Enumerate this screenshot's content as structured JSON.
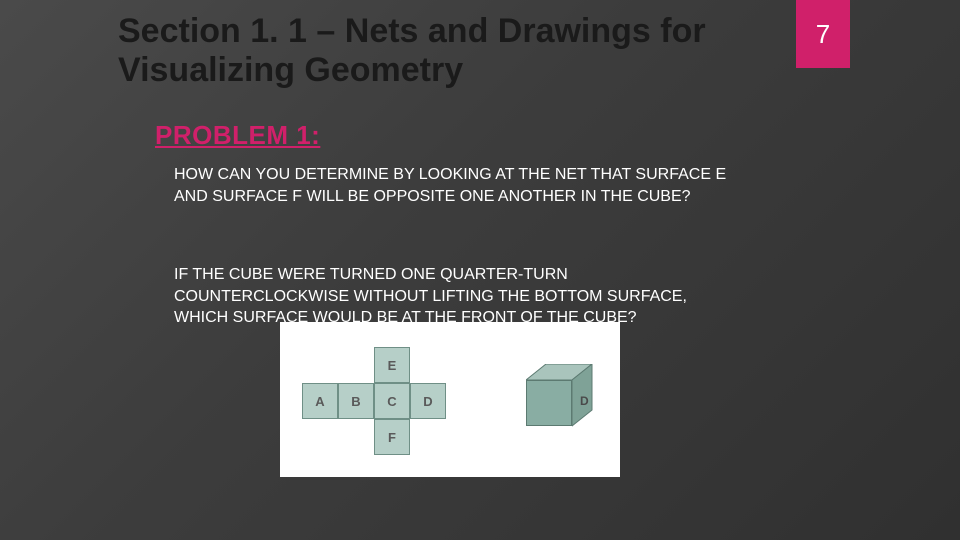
{
  "page": {
    "title": "Section 1. 1 – Nets and Drawings for Visualizing Geometry",
    "number": "7",
    "accent_color": "#d0206a",
    "title_color": "#1a1a1a",
    "body_text_color": "#ffffff",
    "title_fontsize": 34,
    "body_fontsize": 16
  },
  "problem": {
    "label": "PROBLEM 1:",
    "q1": "HOW CAN YOU DETERMINE BY LOOKING AT THE NET THAT SURFACE E AND SURFACE F WILL BE OPPOSITE ONE ANOTHER IN THE CUBE?",
    "q2": "IF THE CUBE WERE TURNED ONE QUARTER-TURN COUNTERCLOCKWISE WITHOUT LIFTING THE BOTTOM SURFACE, WHICH SURFACE WOULD BE AT THE FRONT OF THE CUBE?"
  },
  "figure": {
    "background_color": "#ffffff",
    "net": {
      "square_size": 36,
      "fill_color": "#b6cfc8",
      "border_color": "#6f8f86",
      "label_color": "#5a5a5a",
      "faces": [
        {
          "label": "A",
          "col": 0,
          "row": 1
        },
        {
          "label": "B",
          "col": 1,
          "row": 1
        },
        {
          "label": "C",
          "col": 2,
          "row": 1
        },
        {
          "label": "D",
          "col": 3,
          "row": 1
        },
        {
          "label": "E",
          "col": 2,
          "row": 0
        },
        {
          "label": "F",
          "col": 2,
          "row": 2
        }
      ]
    },
    "cube": {
      "front_color": "#89ada3",
      "top_color": "#a9c4bc",
      "side_color": "#7fa297",
      "border_color": "#5c7a71",
      "side_label": "D"
    }
  }
}
